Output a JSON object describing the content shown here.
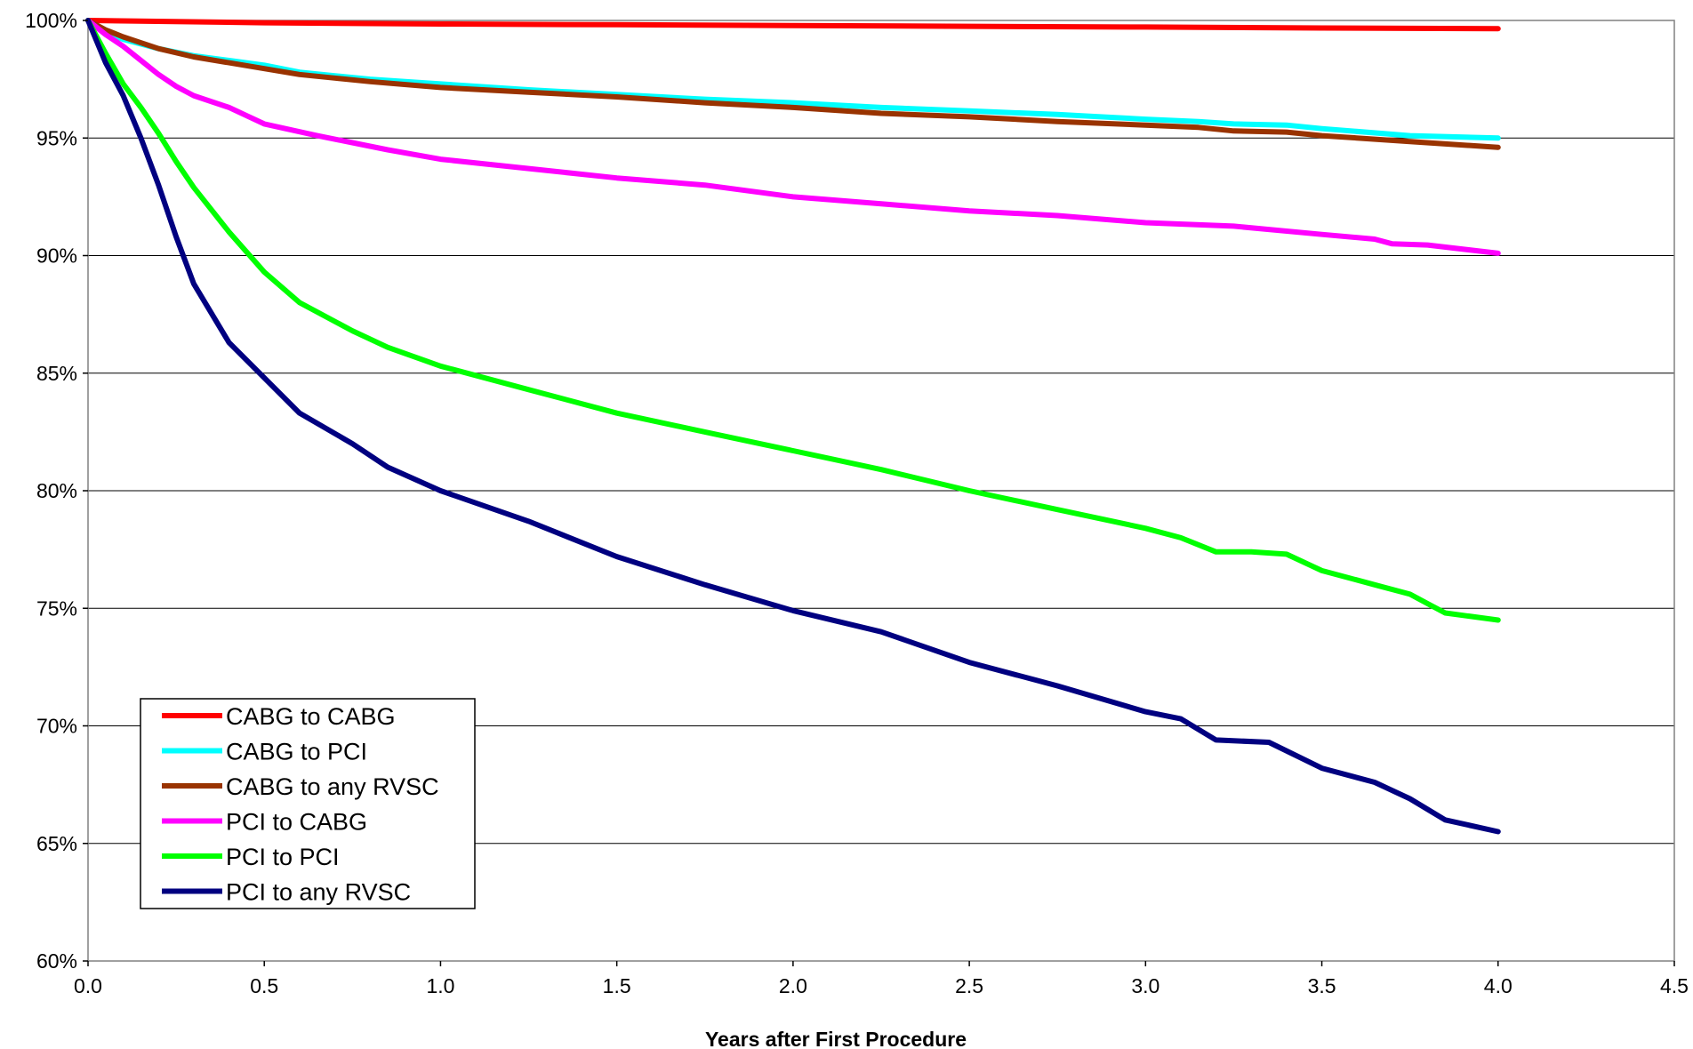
{
  "chart_data": {
    "type": "line",
    "title": "",
    "xlabel": "Years after First Procedure",
    "ylabel": "",
    "xlim": [
      0,
      4.5
    ],
    "ylim": [
      60,
      100
    ],
    "x_ticks": [
      0.0,
      0.5,
      1.0,
      1.5,
      2.0,
      2.5,
      3.0,
      3.5,
      4.0,
      4.5
    ],
    "x_tick_labels": [
      "0.0",
      "0.5",
      "1.0",
      "1.5",
      "2.0",
      "2.5",
      "3.0",
      "3.5",
      "4.0",
      "4.5"
    ],
    "y_ticks": [
      60,
      65,
      70,
      75,
      80,
      85,
      90,
      95,
      100
    ],
    "y_tick_labels": [
      "60%",
      "65%",
      "70%",
      "75%",
      "80%",
      "85%",
      "90%",
      "95%",
      "100%"
    ],
    "grid": "horizontal",
    "legend_position": "bottom-left",
    "series": [
      {
        "name": "CABG to CABG",
        "color": "#ff0000",
        "x": [
          0,
          0.5,
          1.0,
          1.5,
          2.0,
          2.5,
          3.0,
          3.5,
          4.0
        ],
        "y": [
          100,
          99.9,
          99.85,
          99.82,
          99.78,
          99.75,
          99.72,
          99.68,
          99.65
        ]
      },
      {
        "name": "CABG to PCI",
        "color": "#00ffff",
        "x": [
          0,
          0.05,
          0.1,
          0.2,
          0.3,
          0.4,
          0.5,
          0.6,
          0.7,
          0.8,
          1.0,
          1.25,
          1.5,
          1.75,
          2.0,
          2.25,
          2.5,
          2.75,
          3.0,
          3.15,
          3.25,
          3.4,
          3.5,
          3.75,
          4.0
        ],
        "y": [
          100,
          99.5,
          99.2,
          98.8,
          98.5,
          98.3,
          98.1,
          97.8,
          97.65,
          97.5,
          97.3,
          97.05,
          96.85,
          96.65,
          96.5,
          96.3,
          96.15,
          96.0,
          95.8,
          95.7,
          95.6,
          95.55,
          95.4,
          95.1,
          95.0
        ]
      },
      {
        "name": "CABG to any RVSC",
        "color": "#993300",
        "x": [
          0,
          0.05,
          0.1,
          0.2,
          0.3,
          0.4,
          0.5,
          0.6,
          0.7,
          0.8,
          1.0,
          1.25,
          1.5,
          1.75,
          2.0,
          2.25,
          2.5,
          2.75,
          3.0,
          3.15,
          3.25,
          3.4,
          3.5,
          3.75,
          4.0
        ],
        "y": [
          100,
          99.6,
          99.3,
          98.8,
          98.45,
          98.2,
          97.95,
          97.7,
          97.55,
          97.4,
          97.15,
          96.95,
          96.75,
          96.5,
          96.3,
          96.05,
          95.9,
          95.7,
          95.55,
          95.45,
          95.3,
          95.25,
          95.1,
          94.85,
          94.6
        ]
      },
      {
        "name": "PCI to CABG",
        "color": "#ff00ff",
        "x": [
          0,
          0.05,
          0.1,
          0.15,
          0.2,
          0.25,
          0.3,
          0.4,
          0.5,
          0.65,
          0.75,
          0.85,
          1.0,
          1.25,
          1.5,
          1.75,
          2.0,
          2.25,
          2.5,
          2.75,
          3.0,
          3.25,
          3.5,
          3.65,
          3.7,
          3.8,
          4.0
        ],
        "y": [
          100,
          99.4,
          98.9,
          98.3,
          97.7,
          97.2,
          96.8,
          96.3,
          95.6,
          95.1,
          94.8,
          94.5,
          94.1,
          93.7,
          93.3,
          93.0,
          92.5,
          92.2,
          91.9,
          91.7,
          91.4,
          91.25,
          90.9,
          90.7,
          90.5,
          90.45,
          90.1
        ]
      },
      {
        "name": "PCI to PCI",
        "color": "#00ff00",
        "x": [
          0,
          0.05,
          0.1,
          0.15,
          0.2,
          0.25,
          0.3,
          0.4,
          0.5,
          0.6,
          0.75,
          0.85,
          1.0,
          1.25,
          1.5,
          1.75,
          2.0,
          2.25,
          2.5,
          2.75,
          3.0,
          3.1,
          3.2,
          3.3,
          3.4,
          3.5,
          3.65,
          3.75,
          3.8,
          3.85,
          4.0
        ],
        "y": [
          100,
          98.6,
          97.3,
          96.3,
          95.2,
          94.0,
          92.9,
          91.0,
          89.3,
          88.0,
          86.8,
          86.1,
          85.3,
          84.3,
          83.3,
          82.5,
          81.7,
          80.9,
          80.0,
          79.2,
          78.4,
          78.0,
          77.4,
          77.4,
          77.3,
          76.6,
          76.0,
          75.6,
          75.2,
          74.8,
          74.5
        ]
      },
      {
        "name": "PCI to any RVSC",
        "color": "#000080",
        "x": [
          0,
          0.05,
          0.1,
          0.15,
          0.2,
          0.25,
          0.3,
          0.4,
          0.5,
          0.6,
          0.75,
          0.85,
          1.0,
          1.25,
          1.5,
          1.75,
          2.0,
          2.25,
          2.5,
          2.75,
          3.0,
          3.1,
          3.2,
          3.35,
          3.5,
          3.65,
          3.75,
          3.85,
          4.0
        ],
        "y": [
          100,
          98.2,
          96.8,
          95.0,
          93.0,
          90.8,
          88.8,
          86.3,
          84.8,
          83.3,
          82.0,
          81.0,
          80.0,
          78.7,
          77.2,
          76.0,
          74.9,
          74.0,
          72.7,
          71.7,
          70.6,
          70.3,
          69.4,
          69.3,
          68.2,
          67.6,
          66.9,
          66.0,
          65.5
        ]
      }
    ]
  }
}
